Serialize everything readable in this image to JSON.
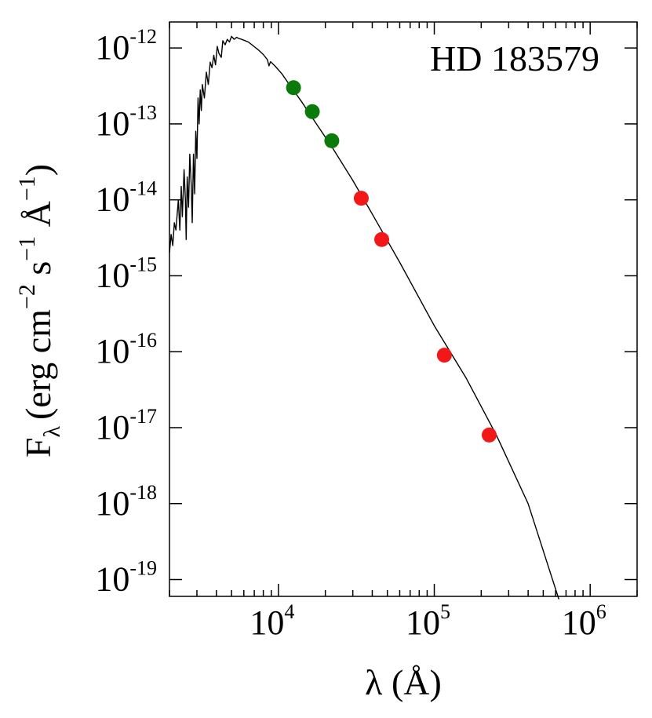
{
  "chart_data": {
    "type": "scatter",
    "annotation": "HD 183579",
    "xlabel": "λ (Å)",
    "ylabel": {
      "base": "F",
      "sub": "λ",
      "text": "(erg cm",
      "exp1": "−2",
      "mid1": " s",
      "exp2": "−1",
      "mid2": " Å",
      "exp3": "−1",
      "end": ")"
    },
    "x_scale": "log",
    "y_scale": "log",
    "xlim": [
      2000,
      2000000
    ],
    "ylim": [
      6e-20,
      2.2e-12
    ],
    "x_ticks": [
      {
        "value": 10000,
        "base": "10",
        "exp": "4"
      },
      {
        "value": 100000,
        "base": "10",
        "exp": "5"
      },
      {
        "value": 1000000,
        "base": "10",
        "exp": "6"
      }
    ],
    "y_ticks": [
      {
        "value": 1e-12,
        "base": "10",
        "exp": "-12"
      },
      {
        "value": 1e-13,
        "base": "10",
        "exp": "-13"
      },
      {
        "value": 1e-14,
        "base": "10",
        "exp": "-14"
      },
      {
        "value": 1e-15,
        "base": "10",
        "exp": "-15"
      },
      {
        "value": 1e-16,
        "base": "10",
        "exp": "-16"
      },
      {
        "value": 1e-17,
        "base": "10",
        "exp": "-17"
      },
      {
        "value": 1e-18,
        "base": "10",
        "exp": "-18"
      },
      {
        "value": 1e-19,
        "base": "10",
        "exp": "-19"
      }
    ],
    "grid": false,
    "colors": {
      "model": "#000000",
      "nir": "#0a7a0a",
      "mir": "#f21818"
    },
    "series": [
      {
        "kind": "model_line",
        "points": [
          [
            2000,
            2e-15
          ],
          [
            2050,
            3.5e-15
          ],
          [
            2100,
            2.5e-15
          ],
          [
            2150,
            5e-15
          ],
          [
            2200,
            4e-15
          ],
          [
            2280,
            1e-14
          ],
          [
            2330,
            4e-15
          ],
          [
            2380,
            1.5e-14
          ],
          [
            2420,
            6e-15
          ],
          [
            2480,
            2.5e-14
          ],
          [
            2530,
            1e-14
          ],
          [
            2560,
            3e-15
          ],
          [
            2600,
            2e-14
          ],
          [
            2650,
            8e-15
          ],
          [
            2700,
            4e-14
          ],
          [
            2760,
            1.5e-14
          ],
          [
            2800,
            5e-15
          ],
          [
            2850,
            4e-14
          ],
          [
            2900,
            1.2e-14
          ],
          [
            2950,
            8e-14
          ],
          [
            3000,
            3.5e-14
          ],
          [
            3050,
            2.2e-13
          ],
          [
            3100,
            1e-13
          ],
          [
            3150,
            2.8e-13
          ],
          [
            3200,
            1.5e-13
          ],
          [
            3250,
            3.3e-13
          ],
          [
            3350,
            2.2e-13
          ],
          [
            3450,
            4.8e-13
          ],
          [
            3550,
            3.3e-13
          ],
          [
            3650,
            6.5e-13
          ],
          [
            3750,
            5.5e-13
          ],
          [
            3850,
            8e-13
          ],
          [
            3950,
            6e-13
          ],
          [
            4050,
            1.05e-12
          ],
          [
            4150,
            8.5e-13
          ],
          [
            4300,
            7.5e-13
          ],
          [
            4400,
            1.25e-12
          ],
          [
            4550,
            1.1e-12
          ],
          [
            4700,
            1.3e-12
          ],
          [
            4850,
            1.2e-12
          ],
          [
            5000,
            1.42e-12
          ],
          [
            5200,
            1.3e-12
          ],
          [
            5400,
            1.38e-12
          ],
          [
            5600,
            1.33e-12
          ],
          [
            5800,
            1.3e-12
          ],
          [
            6100,
            1.25e-12
          ],
          [
            6400,
            1.2e-12
          ],
          [
            6700,
            1.12e-12
          ],
          [
            7000,
            1.04e-12
          ],
          [
            7500,
            9.3e-13
          ],
          [
            8000,
            8.2e-13
          ],
          [
            8500,
            7e-13
          ],
          [
            8700,
            5.8e-13
          ],
          [
            8900,
            6.6e-13
          ],
          [
            9500,
            5.8e-13
          ],
          [
            10500,
            4.6e-13
          ],
          [
            12000,
            3.1e-13
          ],
          [
            14000,
            2e-13
          ],
          [
            17000,
            1.1e-13
          ],
          [
            22000,
            5e-14
          ],
          [
            30000,
            1.8e-14
          ],
          [
            40000,
            6.5e-15
          ],
          [
            60000,
            1.5e-15
          ],
          [
            100000,
            2.2e-16
          ],
          [
            160000,
            4.5e-17
          ],
          [
            250000,
            8e-18
          ],
          [
            400000,
            1e-18
          ],
          [
            630000,
            5.5e-20
          ]
        ]
      },
      {
        "kind": "points",
        "group": "nir",
        "points": [
          [
            12500,
            3e-13
          ],
          [
            16500,
            1.45e-13
          ],
          [
            22000,
            6e-14
          ]
        ]
      },
      {
        "kind": "points",
        "group": "mir",
        "points": [
          [
            34000,
            1.05e-14
          ],
          [
            46000,
            3e-15
          ],
          [
            116000,
            9e-17
          ],
          [
            225000,
            8e-18
          ]
        ]
      }
    ]
  }
}
